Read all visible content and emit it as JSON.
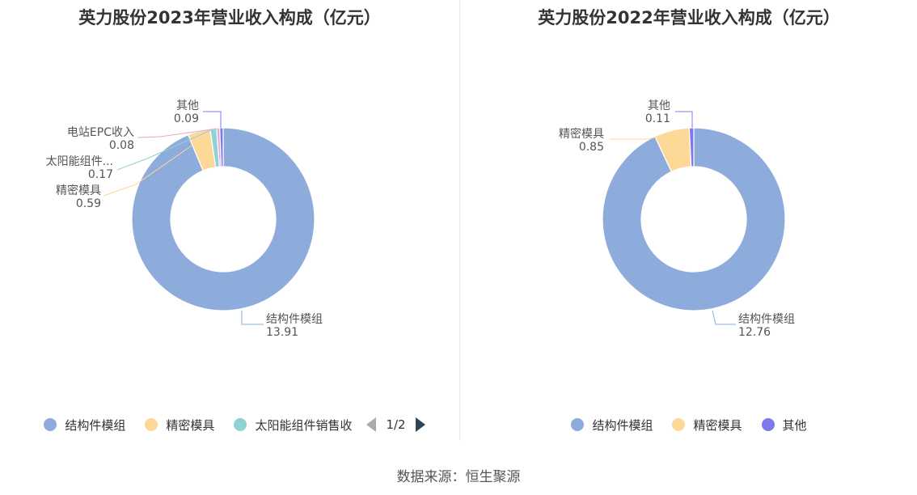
{
  "chart_data": [
    {
      "type": "pie",
      "variant": "donut",
      "title": "英力股份2023年营业收入构成（亿元）",
      "slices": [
        {
          "name": "结构件模组",
          "label": "结构件模组",
          "value": 13.91,
          "color": "#8eacdb"
        },
        {
          "name": "精密模具",
          "label": "精密模具",
          "value": 0.59,
          "color": "#fdd897"
        },
        {
          "name": "太阳能组件销售收入",
          "label": "太阳能组件...",
          "value": 0.17,
          "color": "#8ed3d4"
        },
        {
          "name": "电站EPC收入",
          "label": "电站EPC收入",
          "value": 0.08,
          "color": "#e8a6d1"
        },
        {
          "name": "其他",
          "label": "其他",
          "value": 0.09,
          "color": "#7f79f0"
        }
      ],
      "legend": {
        "placement": "bottom",
        "items": [
          "结构件模组",
          "精密模具",
          "太阳能组件销售收"
        ],
        "pager": "1/2"
      }
    },
    {
      "type": "pie",
      "variant": "donut",
      "title": "英力股份2022年营业收入构成（亿元）",
      "slices": [
        {
          "name": "结构件模组",
          "label": "结构件模组",
          "value": 12.76,
          "color": "#8eacdb"
        },
        {
          "name": "精密模具",
          "label": "精密模具",
          "value": 0.85,
          "color": "#fdd897"
        },
        {
          "name": "其他",
          "label": "其他",
          "value": 0.11,
          "color": "#7f79f0"
        }
      ],
      "legend": {
        "placement": "bottom",
        "items": [
          "结构件模组",
          "精密模具",
          "其他"
        ]
      }
    }
  ],
  "footer": {
    "source": "数据来源：恒生聚源"
  }
}
